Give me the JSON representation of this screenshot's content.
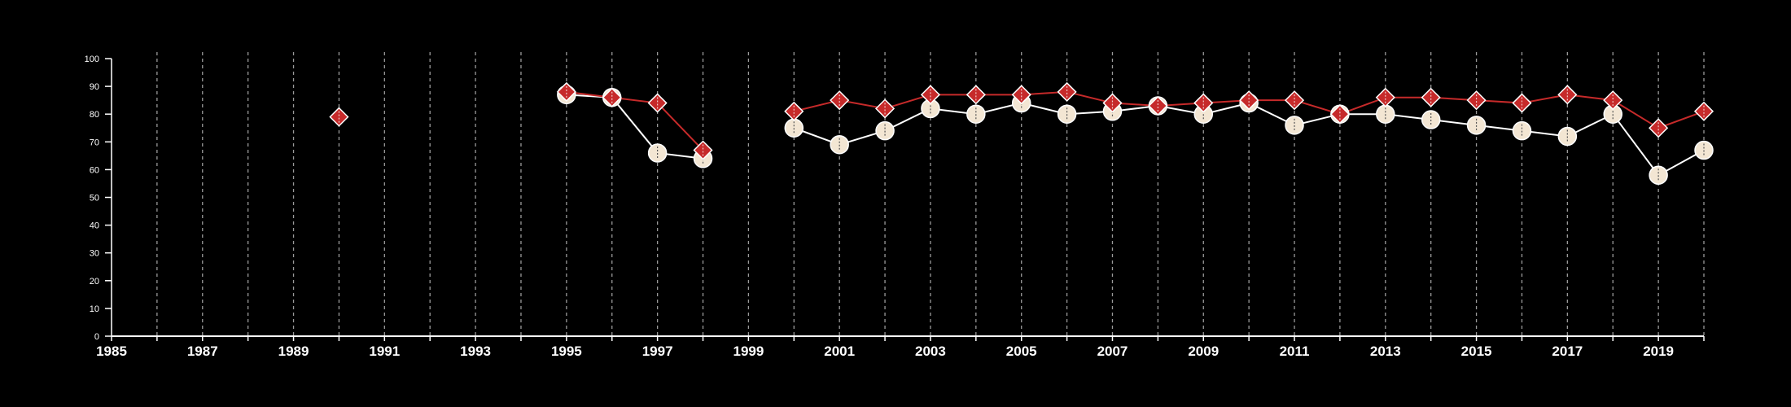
{
  "chart_data": {
    "type": "line",
    "title": "",
    "xlabel": "",
    "ylabel": "",
    "xlim": [
      1985,
      2020
    ],
    "ylim": [
      0,
      100
    ],
    "y_ticks": [
      0,
      10,
      20,
      30,
      40,
      50,
      60,
      70,
      80,
      90,
      100
    ],
    "x_tick_labels": [
      1985,
      1987,
      1989,
      1991,
      1993,
      1995,
      1997,
      1999,
      2001,
      2003,
      2005,
      2007,
      2009,
      2011,
      2013,
      2015,
      2017,
      2019
    ],
    "grid": "vertical dashed lines at every year",
    "legend": "none",
    "series": [
      {
        "marker": "circle",
        "color": "#f3e6d3",
        "points": [
          [
            1995,
            87
          ],
          [
            1996,
            86
          ],
          [
            1997,
            66
          ],
          [
            1998,
            64
          ],
          [
            2000,
            75
          ],
          [
            2001,
            69
          ],
          [
            2002,
            74
          ],
          [
            2003,
            82
          ],
          [
            2004,
            80
          ],
          [
            2005,
            84
          ],
          [
            2006,
            80
          ],
          [
            2007,
            81
          ],
          [
            2008,
            83
          ],
          [
            2009,
            80
          ],
          [
            2010,
            84
          ],
          [
            2011,
            76
          ],
          [
            2012,
            80
          ],
          [
            2013,
            80
          ],
          [
            2014,
            78
          ],
          [
            2015,
            76
          ],
          [
            2016,
            74
          ],
          [
            2017,
            72
          ],
          [
            2018,
            80
          ],
          [
            2019,
            58
          ],
          [
            2020,
            67
          ]
        ]
      },
      {
        "marker": "diamond",
        "color": "#c62a2a",
        "points": [
          [
            1990,
            79
          ],
          [
            1995,
            88
          ],
          [
            1996,
            86
          ],
          [
            1997,
            84
          ],
          [
            1998,
            67
          ],
          [
            2000,
            81
          ],
          [
            2001,
            85
          ],
          [
            2002,
            82
          ],
          [
            2003,
            87
          ],
          [
            2004,
            87
          ],
          [
            2005,
            87
          ],
          [
            2006,
            88
          ],
          [
            2007,
            84
          ],
          [
            2008,
            83
          ],
          [
            2009,
            84
          ],
          [
            2010,
            85
          ],
          [
            2011,
            85
          ],
          [
            2012,
            80
          ],
          [
            2013,
            86
          ],
          [
            2014,
            86
          ],
          [
            2015,
            85
          ],
          [
            2016,
            84
          ],
          [
            2017,
            87
          ],
          [
            2018,
            85
          ],
          [
            2019,
            75
          ],
          [
            2020,
            81
          ]
        ]
      }
    ]
  },
  "colors": {
    "background": "#000000",
    "axis": "#ffffff",
    "grid": "#9a9a9a"
  }
}
